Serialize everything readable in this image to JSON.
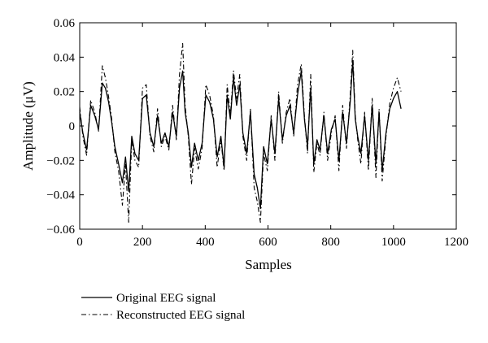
{
  "chart_data": {
    "type": "line",
    "xlabel": "Samples",
    "ylabel": "Amplitude (μV)",
    "xlim": [
      0,
      1200
    ],
    "ylim": [
      -0.06,
      0.06
    ],
    "xticks": [
      0,
      200,
      400,
      600,
      800,
      1000,
      1200
    ],
    "yticks": [
      -0.06,
      -0.04,
      -0.02,
      0,
      0.02,
      0.04,
      0.06
    ],
    "xtick_labels": [
      "0",
      "200",
      "400",
      "600",
      "800",
      "1000",
      "1200"
    ],
    "ytick_labels": [
      "−0.06",
      "−0.04",
      "−0.02",
      "0",
      "0.02",
      "0.04",
      "0.06"
    ],
    "grid": false,
    "legend": "bottom-left",
    "series": [
      {
        "name": "Original EEG signal",
        "style": "solid",
        "color": "#000000",
        "x": [
          0,
          10,
          22,
          35,
          48,
          60,
          72,
          82,
          92,
          102,
          112,
          124,
          136,
          146,
          156,
          166,
          176,
          188,
          200,
          212,
          224,
          236,
          248,
          260,
          272,
          284,
          296,
          308,
          318,
          328,
          336,
          346,
          356,
          366,
          378,
          390,
          402,
          414,
          426,
          438,
          450,
          460,
          470,
          480,
          490,
          500,
          510,
          520,
          532,
          544,
          556,
          566,
          576,
          586,
          598,
          610,
          622,
          634,
          646,
          658,
          670,
          682,
          694,
          706,
          716,
          726,
          736,
          746,
          756,
          766,
          778,
          790,
          802,
          814,
          826,
          838,
          850,
          862,
          870,
          878,
          886,
          896,
          908,
          920,
          932,
          944,
          954,
          964,
          976,
          988,
          1000,
          1012,
          1024
        ],
        "values": [
          0.008,
          -0.004,
          -0.014,
          0.012,
          0.006,
          -0.002,
          0.025,
          0.022,
          0.014,
          0.002,
          -0.012,
          -0.022,
          -0.033,
          -0.018,
          -0.038,
          -0.006,
          -0.016,
          -0.02,
          0.016,
          0.018,
          -0.004,
          -0.012,
          0.006,
          -0.01,
          -0.004,
          -0.012,
          0.008,
          -0.006,
          0.022,
          0.032,
          0.008,
          -0.004,
          -0.024,
          -0.01,
          -0.02,
          -0.01,
          0.018,
          0.014,
          0.004,
          -0.018,
          -0.006,
          -0.024,
          0.018,
          0.004,
          0.028,
          0.012,
          0.024,
          -0.004,
          -0.016,
          0.008,
          -0.028,
          -0.036,
          -0.048,
          -0.012,
          -0.022,
          0.004,
          -0.016,
          0.016,
          -0.008,
          0.006,
          0.012,
          -0.004,
          0.018,
          0.032,
          0.004,
          -0.012,
          0.022,
          -0.022,
          -0.008,
          -0.014,
          0.006,
          -0.016,
          -0.002,
          0.004,
          -0.02,
          0.008,
          -0.01,
          0.014,
          0.038,
          0.004,
          -0.006,
          -0.016,
          0.006,
          -0.02,
          0.012,
          -0.022,
          0.008,
          -0.026,
          -0.004,
          0.01,
          0.016,
          0.02,
          0.01
        ]
      },
      {
        "name": "Reconstructed EEG signal",
        "style": "dash-dot",
        "color": "#000000",
        "x": [
          0,
          10,
          22,
          35,
          48,
          60,
          72,
          82,
          92,
          102,
          112,
          124,
          136,
          146,
          156,
          166,
          176,
          188,
          200,
          212,
          224,
          236,
          248,
          260,
          272,
          284,
          296,
          308,
          318,
          328,
          336,
          346,
          356,
          366,
          378,
          390,
          402,
          414,
          426,
          438,
          450,
          460,
          470,
          480,
          490,
          500,
          510,
          520,
          532,
          544,
          556,
          566,
          576,
          586,
          598,
          610,
          622,
          634,
          646,
          658,
          670,
          682,
          694,
          706,
          716,
          726,
          736,
          746,
          756,
          766,
          778,
          790,
          802,
          814,
          826,
          838,
          850,
          862,
          870,
          878,
          886,
          896,
          908,
          920,
          932,
          944,
          954,
          964,
          976,
          988,
          1000,
          1012,
          1024
        ],
        "values": [
          0.011,
          -0.006,
          -0.017,
          0.015,
          0.008,
          -0.003,
          0.035,
          0.028,
          0.017,
          0.004,
          -0.015,
          -0.026,
          -0.046,
          -0.022,
          -0.056,
          -0.008,
          -0.02,
          -0.024,
          0.022,
          0.024,
          -0.006,
          -0.015,
          0.01,
          -0.012,
          -0.006,
          -0.014,
          0.012,
          -0.008,
          0.03,
          0.048,
          0.012,
          -0.006,
          -0.034,
          -0.013,
          -0.025,
          -0.013,
          0.024,
          0.018,
          0.006,
          -0.024,
          -0.008,
          -0.026,
          0.024,
          0.006,
          0.032,
          0.016,
          0.03,
          -0.006,
          -0.02,
          0.01,
          -0.036,
          -0.044,
          -0.056,
          -0.016,
          -0.026,
          0.006,
          -0.02,
          0.02,
          -0.01,
          0.008,
          0.016,
          -0.006,
          0.024,
          0.036,
          0.006,
          -0.016,
          0.03,
          -0.027,
          -0.01,
          -0.017,
          0.008,
          -0.02,
          -0.004,
          0.006,
          -0.026,
          0.012,
          -0.013,
          0.018,
          0.044,
          0.006,
          -0.008,
          -0.022,
          0.008,
          -0.026,
          0.016,
          -0.03,
          0.01,
          -0.032,
          -0.006,
          0.013,
          0.022,
          0.028,
          0.02
        ]
      }
    ]
  }
}
